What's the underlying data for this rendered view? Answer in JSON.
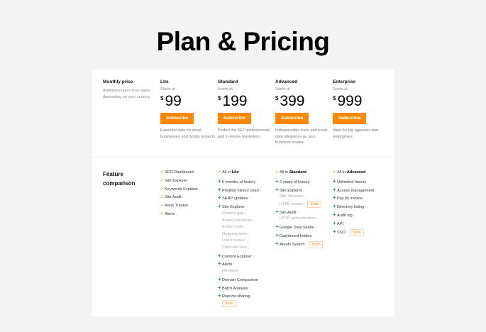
{
  "title": "Plan & Pricing",
  "monthly": {
    "label": "Monthly price",
    "note": "Additional taxes may apply depending on your country."
  },
  "currency": "$",
  "starts_at": "Starts at",
  "subscribe": "Subscribe",
  "info_icon": "i",
  "soon_label": "Soon",
  "plans": [
    {
      "name": "Lite",
      "price": "99",
      "desc": "Essential data for small businesses and hobby projects."
    },
    {
      "name": "Standard",
      "price": "199",
      "desc": "Perfect for SEO professionals and in-house marketers."
    },
    {
      "name": "Advanced",
      "price": "399",
      "desc": "Indispensable tools and more data allowance as your business scales."
    },
    {
      "name": "Enterprise",
      "price": "999",
      "desc": "Ideal for big agencies and enterprises."
    }
  ],
  "feature_comparison": "Feature comparison",
  "colors": {
    "accent": "#ff8800",
    "plus": "#2a9d5a"
  },
  "features": [
    [
      {
        "t": "check",
        "l": "SEO Dashboard"
      },
      {
        "t": "check",
        "l": "Site Explorer"
      },
      {
        "t": "check",
        "l": "Keywords Explorer"
      },
      {
        "t": "check",
        "l": "Site Audit"
      },
      {
        "t": "check",
        "l": "Rank Tracker"
      },
      {
        "t": "check",
        "l": "Alerts"
      }
    ],
    [
      {
        "t": "check",
        "l": "All in ",
        "b": "Lite"
      },
      {
        "t": "plus",
        "l": "6 months of history"
      },
      {
        "t": "plus",
        "l": "Position history chart"
      },
      {
        "t": "plus",
        "l": "SERP updates"
      },
      {
        "t": "plus",
        "l": "Site Explorer"
      },
      {
        "t": "sub",
        "l": "Content gap"
      },
      {
        "t": "sub",
        "l": "Broken backlinks"
      },
      {
        "t": "sub",
        "l": "Broken links"
      },
      {
        "t": "sub",
        "l": "Outgoing links"
      },
      {
        "t": "sub",
        "l": "Link intersect"
      },
      {
        "t": "sub",
        "l": "Calendar view"
      },
      {
        "t": "plus",
        "l": "Content Explorer"
      },
      {
        "t": "plus",
        "l": "Alerts"
      },
      {
        "t": "sub",
        "l": "Mentions"
      },
      {
        "t": "plus",
        "l": "Domain Comparison"
      },
      {
        "t": "plus",
        "l": "Batch Analysis"
      },
      {
        "t": "plus",
        "l": "Reports sharing"
      },
      {
        "t": "soonrow"
      }
    ],
    [
      {
        "t": "check",
        "l": "All in ",
        "b": "Standard"
      },
      {
        "t": "plus",
        "l": "2 years of history"
      },
      {
        "t": "plus",
        "l": "Site Explorer"
      },
      {
        "t": "sub",
        "l": "Site Structure"
      },
      {
        "t": "sub",
        "l": "HTML source",
        "soon": true
      },
      {
        "t": "plus",
        "l": "Site Audit"
      },
      {
        "t": "sub",
        "l": "HTTP authentication"
      },
      {
        "t": "plus",
        "l": "Google Data Studio"
      },
      {
        "t": "plus",
        "l": "Dashboard folders"
      },
      {
        "t": "plus",
        "l": "Ahrefs Search",
        "soon": true
      }
    ],
    [
      {
        "t": "check",
        "l": "All in ",
        "b": "Advanced"
      },
      {
        "t": "plus",
        "l": "Unlimited history"
      },
      {
        "t": "plus",
        "l": "Access management"
      },
      {
        "t": "plus",
        "l": "Pay by invoice"
      },
      {
        "t": "plus",
        "l": "Directory listing"
      },
      {
        "t": "plus",
        "l": "Audit log"
      },
      {
        "t": "plus",
        "l": "API"
      },
      {
        "t": "plus",
        "l": "SSO",
        "soon": true
      }
    ]
  ]
}
